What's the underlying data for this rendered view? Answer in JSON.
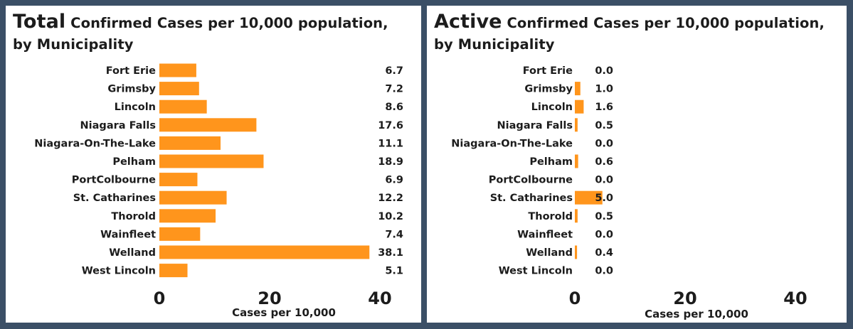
{
  "colors": {
    "bar": "#ff951c",
    "background": "#3b4f66",
    "panel": "#ffffff"
  },
  "chart_data": [
    {
      "type": "bar",
      "orientation": "horizontal",
      "title_lead": "Total",
      "title_rest": "Confirmed Cases per 10,000 population, by Municipality",
      "categories": [
        "Fort Erie",
        "Grimsby",
        "Lincoln",
        "Niagara Falls",
        "Niagara-On-The-Lake",
        "Pelham",
        "PortColbourne",
        "St. Catharines",
        "Thorold",
        "Wainfleet",
        "Welland",
        "West Lincoln"
      ],
      "values": [
        6.7,
        7.2,
        8.6,
        17.6,
        11.1,
        18.9,
        6.9,
        12.2,
        10.2,
        7.4,
        38.1,
        5.1
      ],
      "value_labels": [
        "6.7",
        "7.2",
        "8.6",
        "17.6",
        "11.1",
        "18.9",
        "6.9",
        "12.2",
        "10.2",
        "7.4",
        "38.1",
        "5.1"
      ],
      "xticks": [
        "0",
        "20",
        "40"
      ],
      "xlabel": "Cases per 10,000",
      "xlim": [
        0,
        40
      ]
    },
    {
      "type": "bar",
      "orientation": "horizontal",
      "title_lead": "Active",
      "title_rest": "Confirmed Cases per 10,000 population, by Municipality",
      "categories": [
        "Fort Erie",
        "Grimsby",
        "Lincoln",
        "Niagara Falls",
        "Niagara-On-The-Lake",
        "Pelham",
        "PortColbourne",
        "St. Catharines",
        "Thorold",
        "Wainfleet",
        "Welland",
        "West Lincoln"
      ],
      "values": [
        0.0,
        1.0,
        1.6,
        0.5,
        0.0,
        0.6,
        0.0,
        5.0,
        0.5,
        0.0,
        0.4,
        0.0
      ],
      "value_labels": [
        "0.0",
        "1.0",
        "1.6",
        "0.5",
        "0.0",
        "0.6",
        "0.0",
        "5.0",
        "0.5",
        "0.0",
        "0.4",
        "0.0"
      ],
      "xticks": [
        "0",
        "20",
        "40"
      ],
      "xlabel": "Cases per 10,000",
      "xlim": [
        0,
        40
      ]
    }
  ]
}
